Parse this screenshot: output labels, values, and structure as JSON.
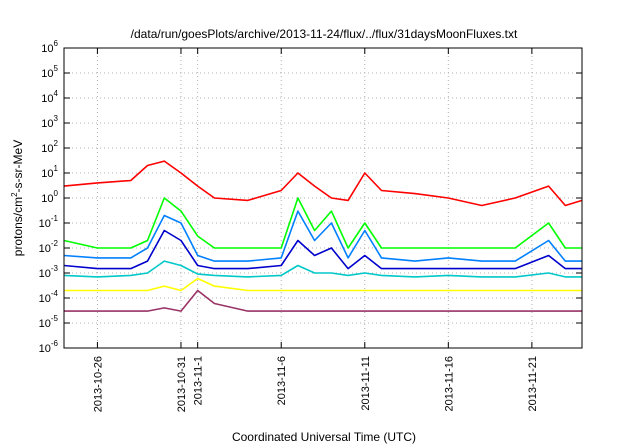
{
  "chart_data": {
    "type": "line",
    "title": "/data/run/goesPlots/archive/2013-11-24/flux/../flux/31daysMoonFluxes.txt",
    "xlabel": "Coordinated Universal Time (UTC)",
    "ylabel": {
      "prefix": "protons/cm",
      "sup": "2",
      "suffix": "-s-sr-MeV"
    },
    "y_scale": "log",
    "ylim": [
      1e-06,
      1000000.0
    ],
    "y_ticks": [
      {
        "base": "10",
        "exp": "-6"
      },
      {
        "base": "10",
        "exp": "-5"
      },
      {
        "base": "10",
        "exp": "-4"
      },
      {
        "base": "10",
        "exp": "-3"
      },
      {
        "base": "10",
        "exp": "-2"
      },
      {
        "base": "10",
        "exp": "-1"
      },
      {
        "base": "10",
        "exp": "0"
      },
      {
        "base": "10",
        "exp": "1"
      },
      {
        "base": "10",
        "exp": "2"
      },
      {
        "base": "10",
        "exp": "3"
      },
      {
        "base": "10",
        "exp": "4"
      },
      {
        "base": "10",
        "exp": "5"
      },
      {
        "base": "10",
        "exp": "6"
      }
    ],
    "xlim": [
      "2013-10-24",
      "2013-11-24"
    ],
    "x_ticks": [
      {
        "date": "2013-10-26",
        "label": "2013-10-26"
      },
      {
        "date": "2013-10-31",
        "label": "2013-10-31"
      },
      {
        "date": "2013-11-01",
        "label": "2013-11-1"
      },
      {
        "date": "2013-11-06",
        "label": "2013-11-6"
      },
      {
        "date": "2013-11-11",
        "label": "2013-11-11"
      },
      {
        "date": "2013-11-16",
        "label": "2013-11-16"
      },
      {
        "date": "2013-11-21",
        "label": "2013-11-21"
      }
    ],
    "grid": true,
    "legend": "none",
    "series": [
      {
        "color": "#ff0000",
        "x": [
          "2013-10-24",
          "2013-10-26",
          "2013-10-28",
          "2013-10-29",
          "2013-10-30",
          "2013-10-31",
          "2013-11-01",
          "2013-11-02",
          "2013-11-04",
          "2013-11-06",
          "2013-11-07",
          "2013-11-08",
          "2013-11-09",
          "2013-11-10",
          "2013-11-11",
          "2013-11-12",
          "2013-11-14",
          "2013-11-16",
          "2013-11-18",
          "2013-11-20",
          "2013-11-22",
          "2013-11-23",
          "2013-11-24"
        ],
        "y": [
          3,
          4,
          5,
          20,
          30,
          10,
          3,
          1,
          0.8,
          2,
          10,
          3,
          1,
          0.8,
          10,
          2,
          1.5,
          1,
          0.5,
          1,
          3,
          0.5,
          0.8
        ]
      },
      {
        "color": "#00ff00",
        "x": [
          "2013-10-24",
          "2013-10-26",
          "2013-10-28",
          "2013-10-29",
          "2013-10-30",
          "2013-10-31",
          "2013-11-01",
          "2013-11-02",
          "2013-11-04",
          "2013-11-06",
          "2013-11-07",
          "2013-11-08",
          "2013-11-09",
          "2013-11-10",
          "2013-11-11",
          "2013-11-12",
          "2013-11-14",
          "2013-11-16",
          "2013-11-18",
          "2013-11-20",
          "2013-11-22",
          "2013-11-23",
          "2013-11-24"
        ],
        "y": [
          0.02,
          0.01,
          0.01,
          0.02,
          1,
          0.3,
          0.03,
          0.01,
          0.01,
          0.01,
          1,
          0.05,
          0.3,
          0.01,
          0.1,
          0.01,
          0.01,
          0.01,
          0.01,
          0.01,
          0.1,
          0.01,
          0.01
        ]
      },
      {
        "color": "#0080ff",
        "x": [
          "2013-10-24",
          "2013-10-26",
          "2013-10-28",
          "2013-10-29",
          "2013-10-30",
          "2013-10-31",
          "2013-11-01",
          "2013-11-02",
          "2013-11-04",
          "2013-11-06",
          "2013-11-07",
          "2013-11-08",
          "2013-11-09",
          "2013-11-10",
          "2013-11-11",
          "2013-11-12",
          "2013-11-14",
          "2013-11-16",
          "2013-11-18",
          "2013-11-20",
          "2013-11-22",
          "2013-11-23",
          "2013-11-24"
        ],
        "y": [
          0.005,
          0.004,
          0.004,
          0.01,
          0.2,
          0.1,
          0.005,
          0.003,
          0.003,
          0.004,
          0.3,
          0.02,
          0.1,
          0.004,
          0.05,
          0.004,
          0.003,
          0.004,
          0.003,
          0.003,
          0.02,
          0.003,
          0.003
        ]
      },
      {
        "color": "#0000cd",
        "x": [
          "2013-10-24",
          "2013-10-26",
          "2013-10-28",
          "2013-10-29",
          "2013-10-30",
          "2013-10-31",
          "2013-11-01",
          "2013-11-02",
          "2013-11-04",
          "2013-11-06",
          "2013-11-07",
          "2013-11-08",
          "2013-11-09",
          "2013-11-10",
          "2013-11-11",
          "2013-11-12",
          "2013-11-14",
          "2013-11-16",
          "2013-11-18",
          "2013-11-20",
          "2013-11-22",
          "2013-11-23",
          "2013-11-24"
        ],
        "y": [
          0.002,
          0.0015,
          0.0015,
          0.003,
          0.05,
          0.02,
          0.002,
          0.0015,
          0.0015,
          0.002,
          0.02,
          0.005,
          0.01,
          0.0015,
          0.005,
          0.0015,
          0.0015,
          0.0015,
          0.0015,
          0.0015,
          0.005,
          0.0015,
          0.0015
        ]
      },
      {
        "color": "#00c8c8",
        "x": [
          "2013-10-24",
          "2013-10-26",
          "2013-10-28",
          "2013-10-29",
          "2013-10-30",
          "2013-10-31",
          "2013-11-01",
          "2013-11-02",
          "2013-11-04",
          "2013-11-06",
          "2013-11-07",
          "2013-11-08",
          "2013-11-09",
          "2013-11-10",
          "2013-11-11",
          "2013-11-12",
          "2013-11-14",
          "2013-11-16",
          "2013-11-18",
          "2013-11-20",
          "2013-11-22",
          "2013-11-23",
          "2013-11-24"
        ],
        "y": [
          0.0008,
          0.0007,
          0.0008,
          0.001,
          0.003,
          0.002,
          0.0009,
          0.0008,
          0.0007,
          0.0008,
          0.002,
          0.001,
          0.001,
          0.0008,
          0.001,
          0.0008,
          0.0007,
          0.0008,
          0.0007,
          0.0007,
          0.001,
          0.0007,
          0.0007
        ]
      },
      {
        "color": "#ffff00",
        "x": [
          "2013-10-24",
          "2013-10-26",
          "2013-10-28",
          "2013-10-29",
          "2013-10-30",
          "2013-10-31",
          "2013-11-01",
          "2013-11-02",
          "2013-11-04",
          "2013-11-06",
          "2013-11-07",
          "2013-11-08",
          "2013-11-09",
          "2013-11-10",
          "2013-11-11",
          "2013-11-12",
          "2013-11-14",
          "2013-11-16",
          "2013-11-18",
          "2013-11-20",
          "2013-11-22",
          "2013-11-23",
          "2013-11-24"
        ],
        "y": [
          0.0002,
          0.0002,
          0.0002,
          0.0002,
          0.0003,
          0.0002,
          0.0006,
          0.0003,
          0.0002,
          0.0002,
          0.0002,
          0.0002,
          0.0002,
          0.0002,
          0.0002,
          0.0002,
          0.0002,
          0.0002,
          0.0002,
          0.0002,
          0.0002,
          0.0002,
          0.0002
        ]
      },
      {
        "color": "#993366",
        "x": [
          "2013-10-24",
          "2013-10-26",
          "2013-10-28",
          "2013-10-29",
          "2013-10-30",
          "2013-10-31",
          "2013-11-01",
          "2013-11-02",
          "2013-11-04",
          "2013-11-06",
          "2013-11-07",
          "2013-11-08",
          "2013-11-09",
          "2013-11-10",
          "2013-11-11",
          "2013-11-12",
          "2013-11-14",
          "2013-11-16",
          "2013-11-18",
          "2013-11-20",
          "2013-11-22",
          "2013-11-23",
          "2013-11-24"
        ],
        "y": [
          3e-05,
          3e-05,
          3e-05,
          3e-05,
          4e-05,
          3e-05,
          0.0002,
          6e-05,
          3e-05,
          3e-05,
          3e-05,
          3e-05,
          3e-05,
          3e-05,
          3e-05,
          3e-05,
          3e-05,
          3e-05,
          3e-05,
          3e-05,
          3e-05,
          3e-05,
          3e-05
        ]
      }
    ]
  }
}
